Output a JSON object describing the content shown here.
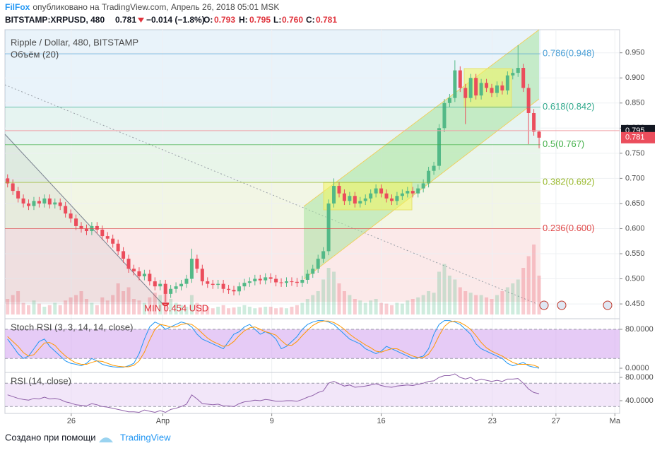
{
  "header": {
    "author": "FilFox",
    "published": "опубликовано на TradingView.com, Апрель 26, 2018 05:01 MSK",
    "symbol": "BITSTAMP:XRPUSD, 480",
    "last": "0.781",
    "change": "−0.014 (−1.8%)",
    "ohlc": [
      {
        "key": "O:",
        "value": "0.793"
      },
      {
        "key": "H:",
        "value": "0.795"
      },
      {
        "key": "L:",
        "value": "0.760"
      },
      {
        "key": "C:",
        "value": "0.781"
      }
    ]
  },
  "chart_data": {
    "type": "candlestick",
    "title": "Ripple / Dollar, 480, BITSTAMP",
    "volume_title": "Объём (20)",
    "up_color": "#53b987",
    "down_color": "#eb4d5c",
    "candles": {
      "open": [
        0.7,
        0.69,
        0.675,
        0.66,
        0.65,
        0.645,
        0.655,
        0.65,
        0.66,
        0.648,
        0.652,
        0.645,
        0.63,
        0.62,
        0.605,
        0.6,
        0.595,
        0.605,
        0.598,
        0.585,
        0.58,
        0.57,
        0.555,
        0.54,
        0.52,
        0.515,
        0.505,
        0.51,
        0.495,
        0.485,
        0.49,
        0.47,
        0.48,
        0.485,
        0.49,
        0.5,
        0.54,
        0.52,
        0.495,
        0.49,
        0.488,
        0.49,
        0.48,
        0.478,
        0.475,
        0.485,
        0.492,
        0.495,
        0.5,
        0.497,
        0.503,
        0.5,
        0.493,
        0.492,
        0.495,
        0.494,
        0.492,
        0.498,
        0.51,
        0.52,
        0.54,
        0.555,
        0.65,
        0.685,
        0.67,
        0.655,
        0.665,
        0.65,
        0.655,
        0.66,
        0.67,
        0.68,
        0.67,
        0.66,
        0.655,
        0.665,
        0.67,
        0.675,
        0.67,
        0.68,
        0.69,
        0.715,
        0.725,
        0.8,
        0.85,
        0.86,
        0.915,
        0.88,
        0.86,
        0.9,
        0.865,
        0.89,
        0.88,
        0.87,
        0.885,
        0.875,
        0.905,
        0.91,
        0.92,
        0.88,
        0.83,
        0.793
      ],
      "high": [
        0.708,
        0.698,
        0.683,
        0.668,
        0.658,
        0.663,
        0.663,
        0.668,
        0.668,
        0.66,
        0.66,
        0.653,
        0.638,
        0.628,
        0.613,
        0.608,
        0.613,
        0.613,
        0.606,
        0.593,
        0.588,
        0.578,
        0.563,
        0.548,
        0.528,
        0.523,
        0.518,
        0.518,
        0.503,
        0.498,
        0.498,
        0.488,
        0.493,
        0.498,
        0.508,
        0.56,
        0.548,
        0.528,
        0.503,
        0.498,
        0.498,
        0.498,
        0.488,
        0.486,
        0.493,
        0.5,
        0.503,
        0.508,
        0.508,
        0.511,
        0.511,
        0.508,
        0.501,
        0.503,
        0.503,
        0.502,
        0.506,
        0.518,
        0.528,
        0.548,
        0.563,
        0.658,
        0.7,
        0.693,
        0.678,
        0.673,
        0.673,
        0.663,
        0.668,
        0.678,
        0.688,
        0.688,
        0.678,
        0.668,
        0.673,
        0.678,
        0.683,
        0.683,
        0.688,
        0.698,
        0.723,
        0.733,
        0.808,
        0.858,
        0.868,
        0.935,
        0.923,
        0.888,
        0.908,
        0.908,
        0.898,
        0.898,
        0.888,
        0.893,
        0.893,
        0.913,
        0.918,
        0.965,
        0.928,
        0.888,
        0.838,
        0.795
      ],
      "low": [
        0.682,
        0.667,
        0.652,
        0.642,
        0.637,
        0.637,
        0.642,
        0.642,
        0.64,
        0.64,
        0.637,
        0.622,
        0.612,
        0.597,
        0.592,
        0.587,
        0.587,
        0.59,
        0.577,
        0.572,
        0.562,
        0.547,
        0.532,
        0.512,
        0.507,
        0.497,
        0.497,
        0.487,
        0.477,
        0.477,
        0.454,
        0.462,
        0.472,
        0.477,
        0.482,
        0.492,
        0.512,
        0.487,
        0.482,
        0.48,
        0.48,
        0.472,
        0.47,
        0.467,
        0.467,
        0.477,
        0.484,
        0.487,
        0.489,
        0.489,
        0.492,
        0.485,
        0.484,
        0.484,
        0.486,
        0.484,
        0.484,
        0.49,
        0.502,
        0.512,
        0.532,
        0.547,
        0.642,
        0.662,
        0.647,
        0.647,
        0.642,
        0.642,
        0.647,
        0.652,
        0.662,
        0.662,
        0.652,
        0.647,
        0.647,
        0.657,
        0.662,
        0.662,
        0.662,
        0.672,
        0.682,
        0.707,
        0.717,
        0.792,
        0.842,
        0.852,
        0.872,
        0.808,
        0.852,
        0.857,
        0.857,
        0.872,
        0.862,
        0.862,
        0.867,
        0.867,
        0.897,
        0.902,
        0.872,
        0.768,
        0.785,
        0.76
      ],
      "close": [
        0.69,
        0.675,
        0.66,
        0.65,
        0.645,
        0.655,
        0.65,
        0.66,
        0.648,
        0.652,
        0.645,
        0.63,
        0.62,
        0.605,
        0.6,
        0.595,
        0.605,
        0.598,
        0.585,
        0.58,
        0.57,
        0.555,
        0.54,
        0.52,
        0.515,
        0.505,
        0.51,
        0.495,
        0.485,
        0.49,
        0.47,
        0.48,
        0.485,
        0.49,
        0.5,
        0.54,
        0.52,
        0.495,
        0.49,
        0.488,
        0.49,
        0.48,
        0.478,
        0.475,
        0.485,
        0.492,
        0.495,
        0.5,
        0.497,
        0.503,
        0.5,
        0.493,
        0.492,
        0.495,
        0.494,
        0.492,
        0.498,
        0.51,
        0.52,
        0.54,
        0.555,
        0.65,
        0.685,
        0.67,
        0.655,
        0.665,
        0.65,
        0.655,
        0.66,
        0.67,
        0.68,
        0.67,
        0.66,
        0.655,
        0.665,
        0.67,
        0.675,
        0.67,
        0.68,
        0.69,
        0.715,
        0.725,
        0.8,
        0.85,
        0.86,
        0.915,
        0.88,
        0.86,
        0.9,
        0.865,
        0.89,
        0.88,
        0.87,
        0.885,
        0.875,
        0.905,
        0.91,
        0.92,
        0.88,
        0.83,
        0.793,
        0.781
      ]
    },
    "volume": {
      "ylim": [
        0,
        100
      ],
      "values": [
        20,
        25,
        30,
        15,
        12,
        18,
        14,
        10,
        12,
        15,
        12,
        18,
        22,
        25,
        30,
        20,
        15,
        12,
        22,
        18,
        25,
        40,
        30,
        35,
        20,
        18,
        15,
        22,
        28,
        25,
        30,
        20,
        15,
        12,
        10,
        25,
        15,
        12,
        10,
        8,
        10,
        12,
        8,
        9,
        10,
        12,
        10,
        8,
        9,
        10,
        10,
        8,
        9,
        8,
        10,
        12,
        15,
        20,
        25,
        30,
        45,
        60,
        55,
        40,
        30,
        25,
        20,
        18,
        15,
        18,
        20,
        15,
        14,
        12,
        15,
        14,
        18,
        20,
        22,
        25,
        30,
        28,
        55,
        65,
        50,
        45,
        35,
        30,
        28,
        25,
        25,
        22,
        20,
        25,
        30,
        35,
        40,
        45,
        60,
        75,
        90,
        50
      ]
    },
    "xlim": [
      -0.5,
      116.3
    ],
    "xticks": [
      {
        "value": 12.1,
        "label": "26"
      },
      {
        "value": 29.5,
        "label": "Апр"
      },
      {
        "value": 50.2,
        "label": "9"
      },
      {
        "value": 71,
        "label": "16"
      },
      {
        "value": 92.1,
        "label": "23"
      },
      {
        "value": 104.2,
        "label": "27"
      },
      {
        "value": 115.4,
        "label": "Ма"
      }
    ],
    "ylim": [
      0.429,
      0.996
    ],
    "yticks": [
      {
        "value": 0.45,
        "label": "0.450"
      },
      {
        "value": 0.5,
        "label": "0.500"
      },
      {
        "value": 0.55,
        "label": "0.550"
      },
      {
        "value": 0.6,
        "label": "0.600"
      },
      {
        "value": 0.65,
        "label": "0.650"
      },
      {
        "value": 0.7,
        "label": "0.700"
      },
      {
        "value": 0.75,
        "label": "0.750"
      },
      {
        "value": 0.8,
        "label": "0.800"
      },
      {
        "value": 0.85,
        "label": "0.850"
      },
      {
        "value": 0.9,
        "label": "0.900"
      },
      {
        "value": 0.95,
        "label": "0.950"
      }
    ],
    "fib_levels": [
      {
        "label": "0.786(0.948)",
        "value": 0.948,
        "color": "#4a9fd6"
      },
      {
        "label": "0.618(0.842)",
        "value": 0.842,
        "color": "#30a88c"
      },
      {
        "label": "0.5(0.767)",
        "value": 0.767,
        "color": "#43b049"
      },
      {
        "label": "0.382(0.692)",
        "value": 0.692,
        "color": "#98b82a"
      },
      {
        "label": "0.236(0.600)",
        "value": 0.6,
        "color": "#e04848"
      }
    ],
    "annotation": {
      "text": "MIN 0.454 USD",
      "value": 0.454,
      "color": "#e0343d"
    },
    "price_labels": [
      {
        "value": 0.795,
        "color": "#131722"
      },
      {
        "value": 0.781,
        "color": "#eb4d5c"
      }
    ],
    "indicators": [
      {
        "type": "line",
        "title": "Stoch RSI (3, 3, 14, 14, close)",
        "ylim": [
          -8.7,
          98.9
        ],
        "band": [
          20,
          80
        ],
        "band_color": "#d6a8f0",
        "yticks": [
          {
            "value": 80,
            "label": "80.0000"
          },
          {
            "value": 0,
            "label": "0.0000"
          }
        ],
        "series": [
          {
            "color": "#2196f3",
            "values": [
              60,
              45,
              30,
              20,
              25,
              40,
              55,
              60,
              45,
              35,
              25,
              15,
              10,
              8,
              5,
              10,
              20,
              15,
              8,
              5,
              3,
              2,
              2,
              5,
              10,
              30,
              60,
              85,
              95,
              90,
              80,
              85,
              90,
              95,
              92,
              85,
              70,
              60,
              55,
              50,
              45,
              40,
              55,
              70,
              75,
              85,
              90,
              80,
              70,
              75,
              70,
              60,
              40,
              45,
              55,
              65,
              80,
              90,
              95,
              98,
              98,
              95,
              90,
              80,
              70,
              60,
              55,
              50,
              40,
              35,
              30,
              35,
              45,
              40,
              35,
              30,
              25,
              20,
              22,
              25,
              40,
              70,
              90,
              98,
              98,
              95,
              90,
              80,
              70,
              50,
              40,
              35,
              30,
              25,
              20,
              10,
              5,
              8,
              12,
              5,
              2,
              0
            ]
          },
          {
            "color": "#ff9800",
            "values": [
              65,
              55,
              45,
              32,
              25,
              28,
              40,
              52,
              53,
              47,
              35,
              25,
              17,
              11,
              8,
              8,
              12,
              15,
              14,
              10,
              6,
              4,
              3,
              3,
              6,
              15,
              33,
              58,
              80,
              90,
              88,
              85,
              85,
              90,
              92,
              90,
              82,
              72,
              62,
              55,
              50,
              45,
              47,
              55,
              67,
              77,
              83,
              85,
              80,
              75,
              72,
              68,
              57,
              48,
              47,
              55,
              67,
              78,
              88,
              94,
              97,
              97,
              94,
              88,
              80,
              70,
              62,
              55,
              48,
              42,
              35,
              33,
              37,
              40,
              40,
              35,
              30,
              25,
              22,
              22,
              29,
              45,
              67,
              86,
              95,
              97,
              94,
              88,
              80,
              67,
              53,
              42,
              35,
              30,
              25,
              18,
              12,
              8,
              8,
              8,
              6,
              2
            ]
          }
        ]
      },
      {
        "type": "line",
        "title": "RSI (14, close)",
        "ylim": [
          18.2,
          86
        ],
        "band": [
          30,
          70
        ],
        "band_color": "#ead6f5",
        "yticks": [
          {
            "value": 80,
            "label": "80.0000"
          },
          {
            "value": 40,
            "label": "40.0000"
          }
        ],
        "series": [
          {
            "color": "#8e5fa8",
            "values": [
              50,
              47,
              44,
              42,
              41,
              44,
              43,
              46,
              43,
              44,
              42,
              38,
              36,
              33,
              32,
              31,
              35,
              33,
              30,
              29,
              27,
              25,
              23,
              21,
              21,
              20,
              24,
              22,
              20,
              23,
              20,
              25,
              27,
              30,
              34,
              50,
              43,
              35,
              34,
              33,
              34,
              31,
              31,
              30,
              35,
              38,
              39,
              41,
              40,
              42,
              41,
              39,
              39,
              40,
              40,
              39,
              42,
              46,
              49,
              54,
              57,
              70,
              73,
              69,
              65,
              67,
              63,
              64,
              65,
              67,
              69,
              66,
              64,
              63,
              65,
              66,
              67,
              66,
              68,
              70,
              73,
              74,
              80,
              83,
              83,
              86,
              80,
              77,
              80,
              74,
              77,
              75,
              73,
              75,
              73,
              77,
              77,
              78,
              70,
              60,
              54,
              52
            ]
          }
        ]
      }
    ]
  },
  "footer": {
    "made_with": "Создано при помощи",
    "brand": "TradingView"
  }
}
